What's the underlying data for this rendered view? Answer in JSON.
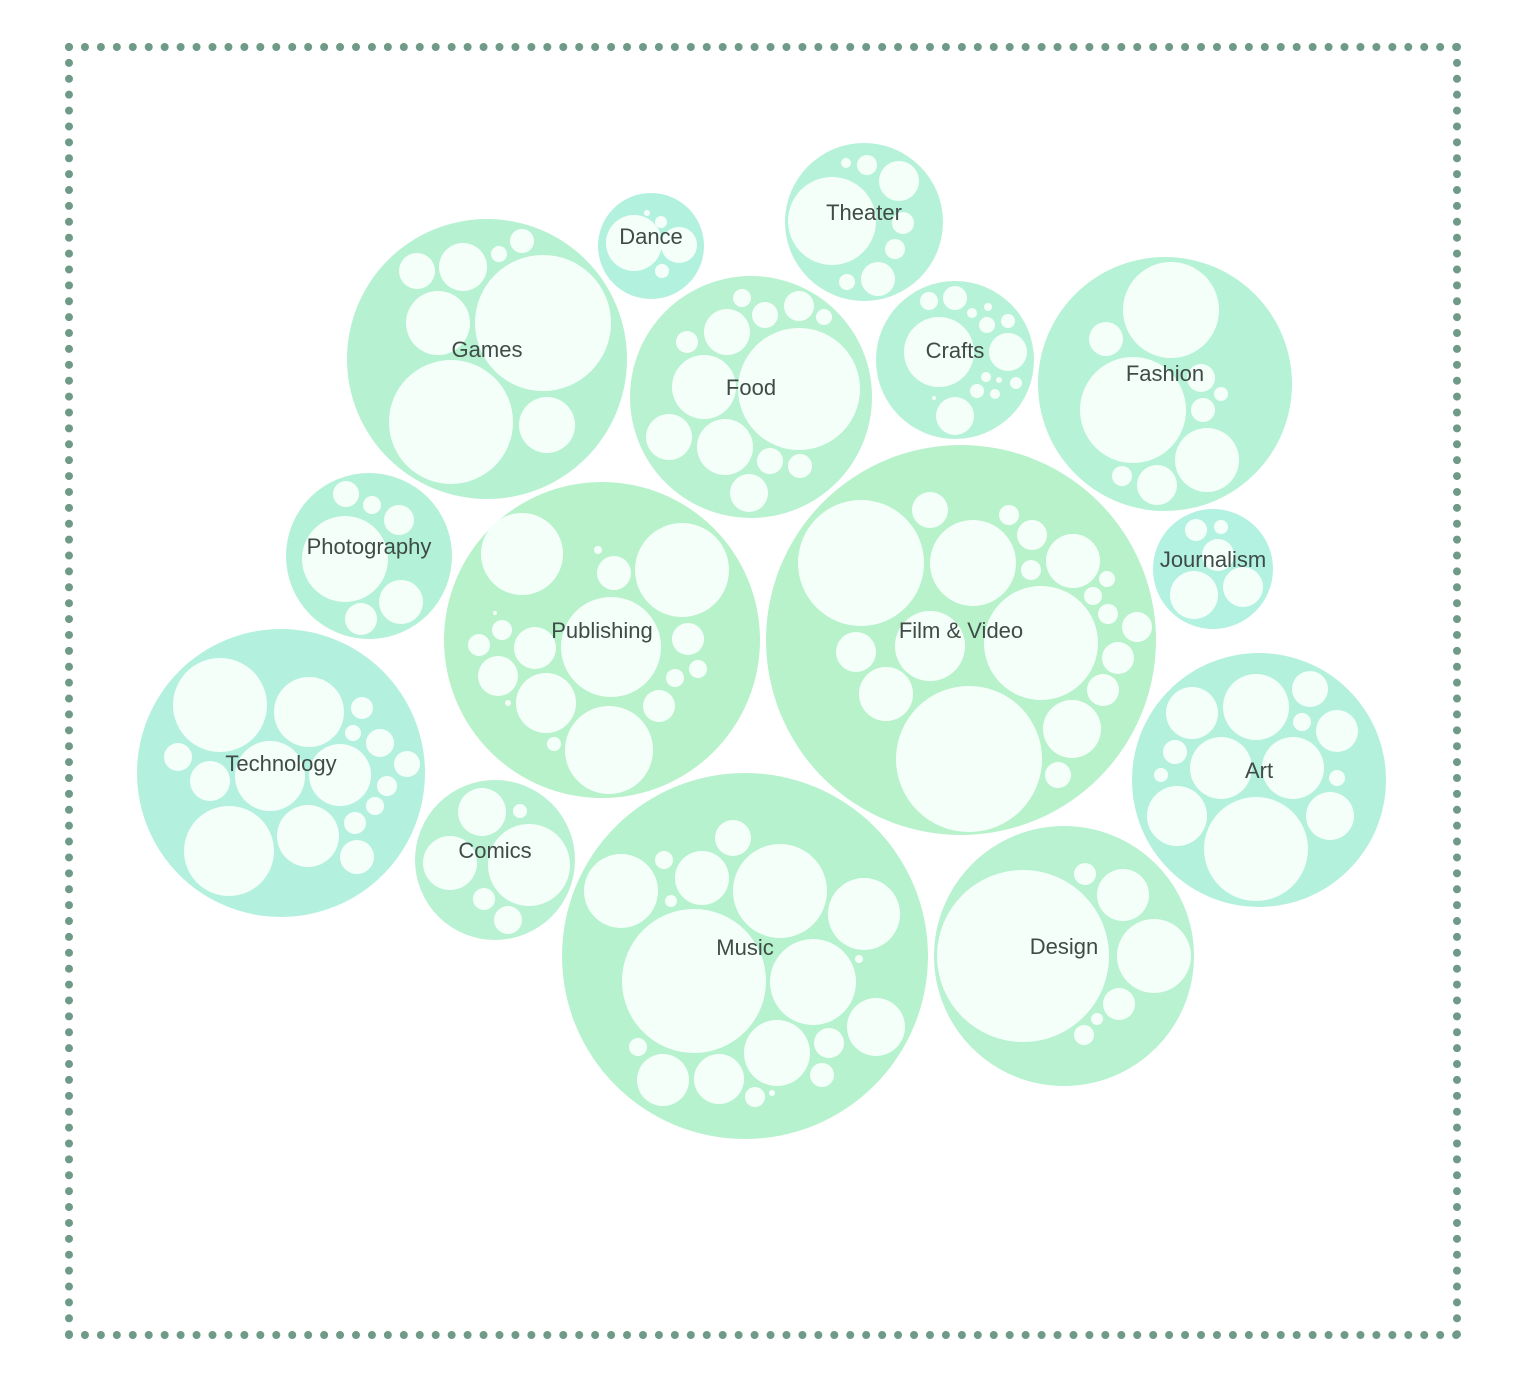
{
  "categories": [
    {
      "name": "Film & Video",
      "color": "#b8f2cb"
    },
    {
      "name": "Music",
      "color": "#b6f2cd"
    },
    {
      "name": "Publishing",
      "color": "#b8f2ca"
    },
    {
      "name": "Technology",
      "color": "#b3f1de"
    },
    {
      "name": "Games",
      "color": "#b6f2d2"
    },
    {
      "name": "Design",
      "color": "#b8f2d0"
    },
    {
      "name": "Art",
      "color": "#b3f1dd"
    },
    {
      "name": "Fashion",
      "color": "#b6f2d6"
    },
    {
      "name": "Food",
      "color": "#b8f2d0"
    },
    {
      "name": "Photography",
      "color": "#b3f1d8"
    },
    {
      "name": "Comics",
      "color": "#b8f2d2"
    },
    {
      "name": "Crafts",
      "color": "#b6f2d8"
    },
    {
      "name": "Theater",
      "color": "#b6f2d9"
    },
    {
      "name": "Journalism",
      "color": "#b3f1e0"
    },
    {
      "name": "Dance",
      "color": "#b3f1df"
    }
  ]
}
